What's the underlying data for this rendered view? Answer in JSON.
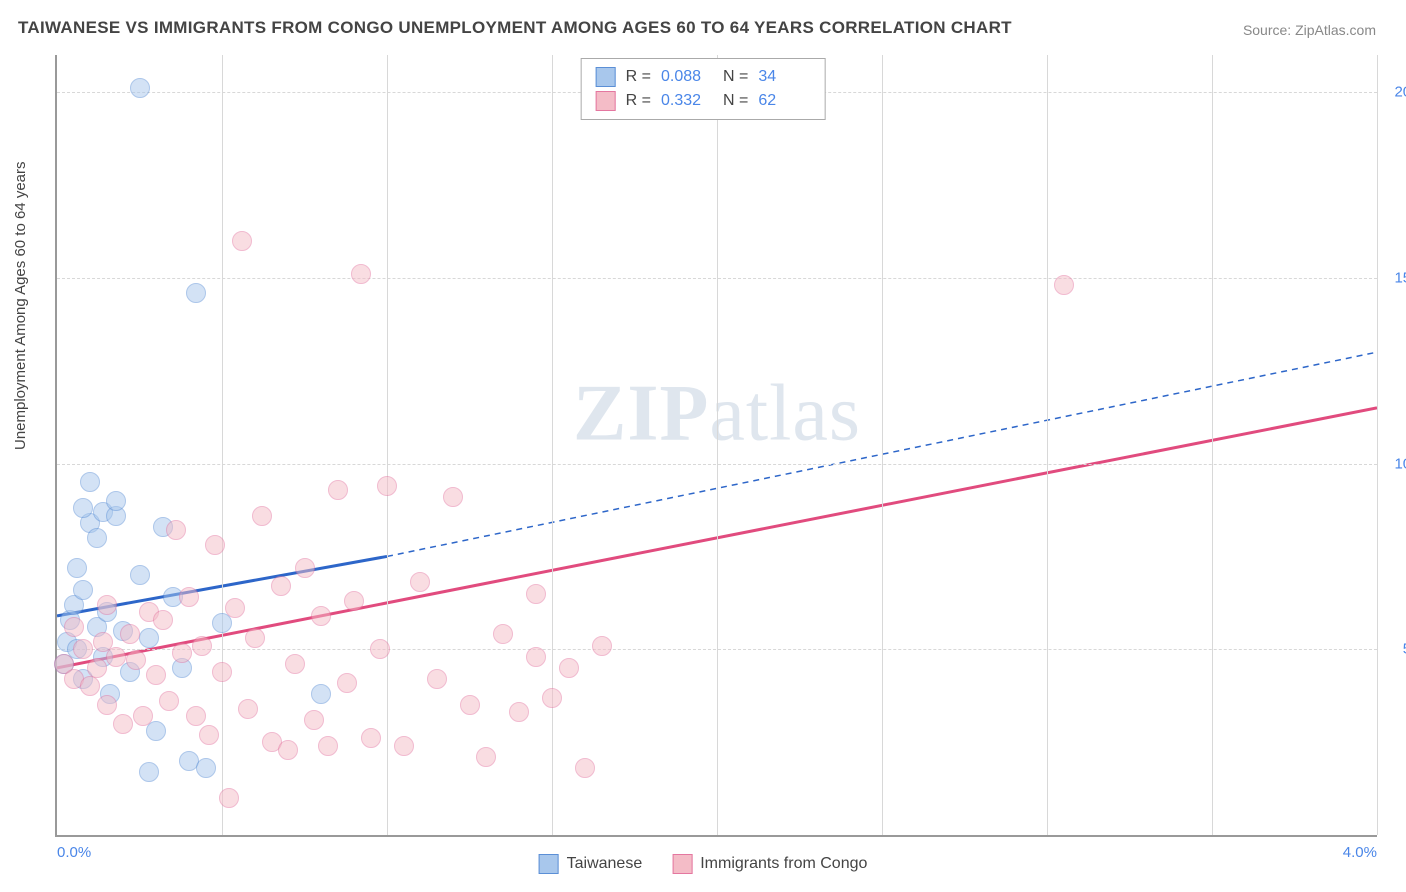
{
  "title": "TAIWANESE VS IMMIGRANTS FROM CONGO UNEMPLOYMENT AMONG AGES 60 TO 64 YEARS CORRELATION CHART",
  "source_label": "Source: ZipAtlas.com",
  "ylabel": "Unemployment Among Ages 60 to 64 years",
  "watermark_bold": "ZIP",
  "watermark_rest": "atlas",
  "chart": {
    "type": "scatter",
    "background_color": "#ffffff",
    "grid_color": "#d8d8d8",
    "axis_color": "#999999",
    "xlim": [
      0.0,
      4.0
    ],
    "ylim": [
      0.0,
      21.0
    ],
    "xticks": [
      0.0,
      4.0
    ],
    "xtick_labels": [
      "0.0%",
      "4.0%"
    ],
    "x_gridlines": [
      0.5,
      1.0,
      1.5,
      2.0,
      2.5,
      3.0,
      3.5,
      4.0
    ],
    "yticks": [
      5.0,
      10.0,
      15.0,
      20.0
    ],
    "ytick_labels": [
      "5.0%",
      "10.0%",
      "15.0%",
      "20.0%"
    ],
    "tick_color": "#4a86e8",
    "tick_fontsize": 15,
    "title_fontsize": 17,
    "label_fontsize": 15,
    "marker_radius": 9,
    "marker_opacity": 0.5,
    "series": [
      {
        "name": "Taiwanese",
        "fill_color": "#a8c7ec",
        "stroke_color": "#5b8fd6",
        "line_color": "#2d66c9",
        "r_value": "0.088",
        "n_value": "34",
        "trend": {
          "x1": 0.0,
          "y1": 5.9,
          "x2": 1.0,
          "y2": 7.5,
          "x3": 4.0,
          "y3": 13.0
        },
        "points": [
          {
            "x": 0.02,
            "y": 4.6
          },
          {
            "x": 0.03,
            "y": 5.2
          },
          {
            "x": 0.04,
            "y": 5.8
          },
          {
            "x": 0.05,
            "y": 6.2
          },
          {
            "x": 0.06,
            "y": 5.0
          },
          {
            "x": 0.08,
            "y": 6.6
          },
          {
            "x": 0.08,
            "y": 4.2
          },
          {
            "x": 0.1,
            "y": 8.4
          },
          {
            "x": 0.1,
            "y": 9.5
          },
          {
            "x": 0.12,
            "y": 8.0
          },
          {
            "x": 0.12,
            "y": 5.6
          },
          {
            "x": 0.14,
            "y": 8.7
          },
          {
            "x": 0.14,
            "y": 4.8
          },
          {
            "x": 0.16,
            "y": 3.8
          },
          {
            "x": 0.18,
            "y": 8.6
          },
          {
            "x": 0.18,
            "y": 9.0
          },
          {
            "x": 0.2,
            "y": 5.5
          },
          {
            "x": 0.22,
            "y": 4.4
          },
          {
            "x": 0.25,
            "y": 7.0
          },
          {
            "x": 0.28,
            "y": 1.7
          },
          {
            "x": 0.28,
            "y": 5.3
          },
          {
            "x": 0.3,
            "y": 2.8
          },
          {
            "x": 0.32,
            "y": 8.3
          },
          {
            "x": 0.35,
            "y": 6.4
          },
          {
            "x": 0.38,
            "y": 4.5
          },
          {
            "x": 0.4,
            "y": 2.0
          },
          {
            "x": 0.42,
            "y": 14.6
          },
          {
            "x": 0.45,
            "y": 1.8
          },
          {
            "x": 0.5,
            "y": 5.7
          },
          {
            "x": 0.25,
            "y": 20.1
          },
          {
            "x": 0.8,
            "y": 3.8
          },
          {
            "x": 0.15,
            "y": 6.0
          },
          {
            "x": 0.06,
            "y": 7.2
          },
          {
            "x": 0.08,
            "y": 8.8
          }
        ]
      },
      {
        "name": "Immigrants from Congo",
        "fill_color": "#f4bcc7",
        "stroke_color": "#e477a0",
        "line_color": "#e14b7e",
        "r_value": "0.332",
        "n_value": "62",
        "trend": {
          "x1": 0.0,
          "y1": 4.5,
          "x2": 4.0,
          "y2": 11.5
        },
        "points": [
          {
            "x": 0.02,
            "y": 4.6
          },
          {
            "x": 0.05,
            "y": 4.2
          },
          {
            "x": 0.08,
            "y": 5.0
          },
          {
            "x": 0.1,
            "y": 4.0
          },
          {
            "x": 0.12,
            "y": 4.5
          },
          {
            "x": 0.14,
            "y": 5.2
          },
          {
            "x": 0.15,
            "y": 3.5
          },
          {
            "x": 0.18,
            "y": 4.8
          },
          {
            "x": 0.2,
            "y": 3.0
          },
          {
            "x": 0.22,
            "y": 5.4
          },
          {
            "x": 0.24,
            "y": 4.7
          },
          {
            "x": 0.26,
            "y": 3.2
          },
          {
            "x": 0.28,
            "y": 6.0
          },
          {
            "x": 0.3,
            "y": 4.3
          },
          {
            "x": 0.32,
            "y": 5.8
          },
          {
            "x": 0.34,
            "y": 3.6
          },
          {
            "x": 0.36,
            "y": 8.2
          },
          {
            "x": 0.38,
            "y": 4.9
          },
          {
            "x": 0.4,
            "y": 6.4
          },
          {
            "x": 0.42,
            "y": 3.2
          },
          {
            "x": 0.44,
            "y": 5.1
          },
          {
            "x": 0.46,
            "y": 2.7
          },
          {
            "x": 0.48,
            "y": 7.8
          },
          {
            "x": 0.5,
            "y": 4.4
          },
          {
            "x": 0.05,
            "y": 5.6
          },
          {
            "x": 0.52,
            "y": 1.0
          },
          {
            "x": 0.54,
            "y": 6.1
          },
          {
            "x": 0.56,
            "y": 16.0
          },
          {
            "x": 0.58,
            "y": 3.4
          },
          {
            "x": 0.6,
            "y": 5.3
          },
          {
            "x": 0.62,
            "y": 8.6
          },
          {
            "x": 0.65,
            "y": 2.5
          },
          {
            "x": 0.68,
            "y": 6.7
          },
          {
            "x": 0.7,
            "y": 2.3
          },
          {
            "x": 0.72,
            "y": 4.6
          },
          {
            "x": 0.75,
            "y": 7.2
          },
          {
            "x": 0.78,
            "y": 3.1
          },
          {
            "x": 0.8,
            "y": 5.9
          },
          {
            "x": 0.82,
            "y": 2.4
          },
          {
            "x": 0.85,
            "y": 9.3
          },
          {
            "x": 0.88,
            "y": 4.1
          },
          {
            "x": 0.9,
            "y": 6.3
          },
          {
            "x": 0.92,
            "y": 15.1
          },
          {
            "x": 0.95,
            "y": 2.6
          },
          {
            "x": 0.98,
            "y": 5.0
          },
          {
            "x": 1.0,
            "y": 9.4
          },
          {
            "x": 1.05,
            "y": 2.4
          },
          {
            "x": 1.1,
            "y": 6.8
          },
          {
            "x": 1.15,
            "y": 4.2
          },
          {
            "x": 1.2,
            "y": 9.1
          },
          {
            "x": 1.25,
            "y": 3.5
          },
          {
            "x": 1.3,
            "y": 2.1
          },
          {
            "x": 1.35,
            "y": 5.4
          },
          {
            "x": 1.4,
            "y": 3.3
          },
          {
            "x": 1.45,
            "y": 4.8
          },
          {
            "x": 1.5,
            "y": 3.7
          },
          {
            "x": 1.55,
            "y": 4.5
          },
          {
            "x": 1.6,
            "y": 1.8
          },
          {
            "x": 1.65,
            "y": 5.1
          },
          {
            "x": 1.45,
            "y": 6.5
          },
          {
            "x": 3.05,
            "y": 14.8
          },
          {
            "x": 0.15,
            "y": 6.2
          }
        ]
      }
    ]
  },
  "legend_top": {
    "r_label": "R =",
    "n_label": "N ="
  },
  "legend_bottom": {
    "items": [
      "Taiwanese",
      "Immigrants from Congo"
    ]
  }
}
